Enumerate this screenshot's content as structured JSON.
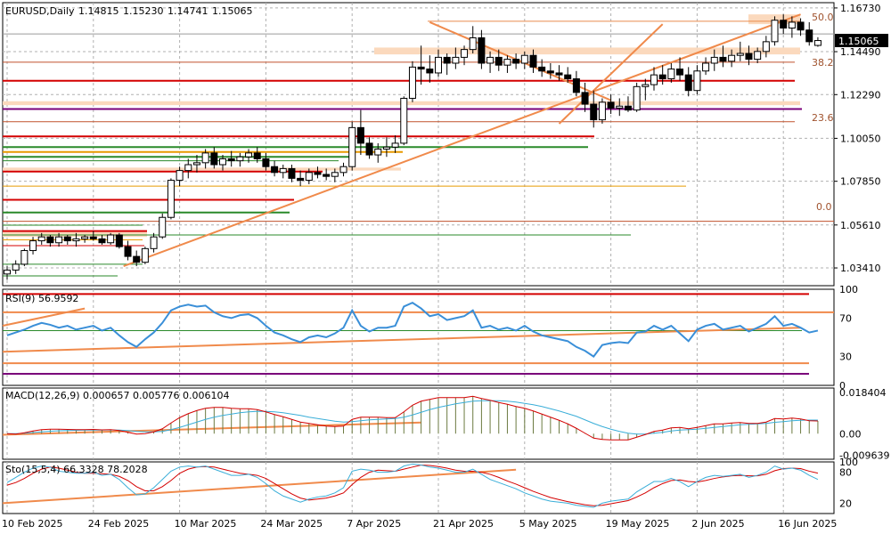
{
  "chart_data": [
    {
      "panel": "price",
      "type": "candlestick",
      "title": "EURUSD,Daily",
      "ohlc_readout": [
        "1.14815",
        "1.15230",
        "1.14741",
        "1.15065"
      ],
      "y_ticks": [
        "1.16730",
        "1.14490",
        "1.12290",
        "1.10050",
        "1.07850",
        "1.05610",
        "1.03410"
      ],
      "ylim": [
        1.025,
        1.17
      ],
      "current_price": "1.15065",
      "x_labels": [
        "10 Feb 2025",
        "24 Feb 2025",
        "10 Mar 2025",
        "24 Mar 2025",
        "7 Apr 2025",
        "21 Apr 2025",
        "5 May 2025",
        "19 May 2025",
        "2 Jun 2025",
        "16 Jun 2025"
      ],
      "fib_labels": [
        "50.0",
        "38.2",
        "23.6",
        "0.0"
      ],
      "candles": [
        [
          1.031,
          1.035,
          1.028,
          1.033
        ],
        [
          1.033,
          1.038,
          1.031,
          1.036
        ],
        [
          1.036,
          1.044,
          1.035,
          1.043
        ],
        [
          1.043,
          1.05,
          1.041,
          1.048
        ],
        [
          1.048,
          1.052,
          1.046,
          1.05
        ],
        [
          1.05,
          1.051,
          1.045,
          1.047
        ],
        [
          1.047,
          1.052,
          1.045,
          1.05
        ],
        [
          1.05,
          1.051,
          1.046,
          1.048
        ],
        [
          1.048,
          1.052,
          1.045,
          1.049
        ],
        [
          1.049,
          1.051,
          1.047,
          1.05
        ],
        [
          1.05,
          1.053,
          1.048,
          1.049
        ],
        [
          1.049,
          1.051,
          1.046,
          1.047
        ],
        [
          1.047,
          1.052,
          1.046,
          1.051
        ],
        [
          1.051,
          1.052,
          1.044,
          1.045
        ],
        [
          1.045,
          1.048,
          1.038,
          1.04
        ],
        [
          1.04,
          1.043,
          1.035,
          1.037
        ],
        [
          1.037,
          1.045,
          1.036,
          1.044
        ],
        [
          1.044,
          1.052,
          1.042,
          1.05
        ],
        [
          1.05,
          1.062,
          1.049,
          1.06
        ],
        [
          1.06,
          1.08,
          1.059,
          1.079
        ],
        [
          1.079,
          1.086,
          1.076,
          1.084
        ],
        [
          1.084,
          1.09,
          1.08,
          1.087
        ],
        [
          1.087,
          1.092,
          1.083,
          1.088
        ],
        [
          1.088,
          1.095,
          1.085,
          1.093
        ],
        [
          1.093,
          1.096,
          1.085,
          1.087
        ],
        [
          1.087,
          1.092,
          1.084,
          1.09
        ],
        [
          1.09,
          1.094,
          1.086,
          1.089
        ],
        [
          1.089,
          1.093,
          1.086,
          1.091
        ],
        [
          1.091,
          1.095,
          1.088,
          1.093
        ],
        [
          1.093,
          1.096,
          1.088,
          1.09
        ],
        [
          1.09,
          1.093,
          1.084,
          1.086
        ],
        [
          1.086,
          1.089,
          1.081,
          1.083
        ],
        [
          1.083,
          1.087,
          1.08,
          1.085
        ],
        [
          1.085,
          1.087,
          1.078,
          1.08
        ],
        [
          1.08,
          1.084,
          1.076,
          1.079
        ],
        [
          1.079,
          1.085,
          1.077,
          1.083
        ],
        [
          1.083,
          1.086,
          1.08,
          1.082
        ],
        [
          1.082,
          1.085,
          1.079,
          1.081
        ],
        [
          1.081,
          1.085,
          1.078,
          1.083
        ],
        [
          1.083,
          1.088,
          1.081,
          1.086
        ],
        [
          1.086,
          1.109,
          1.084,
          1.106
        ],
        [
          1.106,
          1.115,
          1.092,
          1.098
        ],
        [
          1.098,
          1.101,
          1.09,
          1.092
        ],
        [
          1.092,
          1.098,
          1.088,
          1.095
        ],
        [
          1.095,
          1.101,
          1.091,
          1.096
        ],
        [
          1.096,
          1.102,
          1.093,
          1.098
        ],
        [
          1.098,
          1.122,
          1.097,
          1.121
        ],
        [
          1.121,
          1.14,
          1.119,
          1.137
        ],
        [
          1.137,
          1.148,
          1.128,
          1.136
        ],
        [
          1.136,
          1.143,
          1.129,
          1.134
        ],
        [
          1.134,
          1.146,
          1.132,
          1.142
        ],
        [
          1.142,
          1.144,
          1.133,
          1.139
        ],
        [
          1.139,
          1.147,
          1.136,
          1.142
        ],
        [
          1.142,
          1.148,
          1.138,
          1.146
        ],
        [
          1.146,
          1.158,
          1.144,
          1.152
        ],
        [
          1.152,
          1.156,
          1.136,
          1.139
        ],
        [
          1.139,
          1.145,
          1.134,
          1.142
        ],
        [
          1.142,
          1.146,
          1.135,
          1.138
        ],
        [
          1.138,
          1.143,
          1.134,
          1.141
        ],
        [
          1.141,
          1.144,
          1.136,
          1.139
        ],
        [
          1.139,
          1.145,
          1.136,
          1.143
        ],
        [
          1.143,
          1.146,
          1.134,
          1.137
        ],
        [
          1.137,
          1.141,
          1.132,
          1.135
        ],
        [
          1.135,
          1.139,
          1.131,
          1.134
        ],
        [
          1.134,
          1.138,
          1.13,
          1.133
        ],
        [
          1.133,
          1.137,
          1.129,
          1.131
        ],
        [
          1.131,
          1.135,
          1.122,
          1.124
        ],
        [
          1.124,
          1.129,
          1.114,
          1.118
        ],
        [
          1.118,
          1.125,
          1.106,
          1.11
        ],
        [
          1.11,
          1.121,
          1.108,
          1.119
        ],
        [
          1.119,
          1.123,
          1.113,
          1.116
        ],
        [
          1.116,
          1.121,
          1.112,
          1.117
        ],
        [
          1.117,
          1.122,
          1.114,
          1.115
        ],
        [
          1.115,
          1.129,
          1.114,
          1.127
        ],
        [
          1.127,
          1.131,
          1.12,
          1.128
        ],
        [
          1.128,
          1.137,
          1.125,
          1.133
        ],
        [
          1.133,
          1.138,
          1.128,
          1.131
        ],
        [
          1.131,
          1.139,
          1.129,
          1.136
        ],
        [
          1.136,
          1.142,
          1.13,
          1.133
        ],
        [
          1.133,
          1.137,
          1.122,
          1.125
        ],
        [
          1.125,
          1.138,
          1.123,
          1.135
        ],
        [
          1.135,
          1.142,
          1.133,
          1.139
        ],
        [
          1.139,
          1.146,
          1.135,
          1.142
        ],
        [
          1.142,
          1.148,
          1.137,
          1.14
        ],
        [
          1.14,
          1.146,
          1.137,
          1.143
        ],
        [
          1.143,
          1.15,
          1.14,
          1.144
        ],
        [
          1.144,
          1.148,
          1.138,
          1.141
        ],
        [
          1.141,
          1.147,
          1.139,
          1.145
        ],
        [
          1.145,
          1.153,
          1.142,
          1.15
        ],
        [
          1.15,
          1.163,
          1.148,
          1.161
        ],
        [
          1.161,
          1.164,
          1.154,
          1.157
        ],
        [
          1.157,
          1.163,
          1.152,
          1.16
        ],
        [
          1.16,
          1.162,
          1.153,
          1.156
        ],
        [
          1.156,
          1.16,
          1.148,
          1.15
        ],
        [
          1.1481,
          1.1523,
          1.1474,
          1.1506
        ]
      ]
    },
    {
      "panel": "rsi",
      "type": "line",
      "title": "RSI(9) 56.9592",
      "y_ticks": [
        "100",
        "70",
        "30",
        "0"
      ],
      "ylim": [
        0,
        100
      ],
      "values": [
        52,
        55,
        58,
        62,
        65,
        63,
        60,
        62,
        58,
        60,
        62,
        57,
        60,
        52,
        45,
        40,
        48,
        55,
        65,
        78,
        82,
        84,
        82,
        83,
        76,
        72,
        70,
        73,
        74,
        70,
        62,
        55,
        52,
        48,
        45,
        50,
        52,
        50,
        54,
        60,
        78,
        62,
        56,
        60,
        60,
        62,
        82,
        86,
        80,
        72,
        74,
        68,
        70,
        72,
        78,
        60,
        62,
        58,
        60,
        57,
        62,
        56,
        52,
        50,
        48,
        46,
        40,
        36,
        30,
        42,
        44,
        45,
        44,
        55,
        56,
        62,
        58,
        62,
        54,
        46,
        58,
        62,
        64,
        58,
        60,
        62,
        56,
        60,
        64,
        72,
        62,
        64,
        60,
        55,
        57
      ]
    },
    {
      "panel": "macd",
      "type": "line",
      "title": "MACD(12,26,9) 0.000657 0.005776 0.006104",
      "y_ticks": [
        "0.018404",
        "0.00",
        "-0.009639"
      ],
      "ylim": [
        -0.0115,
        0.0205
      ],
      "macd": [
        0,
        -0.0002,
        0.0004,
        0.0012,
        0.0018,
        0.002,
        0.002,
        0.0019,
        0.0018,
        0.0018,
        0.0019,
        0.0017,
        0.0018,
        0.0014,
        0.0006,
        -0.0002,
        0,
        0.0008,
        0.0022,
        0.0048,
        0.0072,
        0.009,
        0.0104,
        0.0114,
        0.0118,
        0.0118,
        0.0114,
        0.0112,
        0.0112,
        0.0108,
        0.0098,
        0.0086,
        0.0076,
        0.0064,
        0.0052,
        0.0046,
        0.004,
        0.0034,
        0.0032,
        0.0034,
        0.0064,
        0.0074,
        0.0074,
        0.0074,
        0.0072,
        0.0072,
        0.0098,
        0.0128,
        0.0146,
        0.0154,
        0.0162,
        0.0162,
        0.0162,
        0.0162,
        0.0168,
        0.0158,
        0.015,
        0.014,
        0.0132,
        0.0122,
        0.0114,
        0.0102,
        0.0088,
        0.0074,
        0.006,
        0.0044,
        0.0024,
        0.0002,
        -0.002,
        -0.0026,
        -0.0028,
        -0.0028,
        -0.0028,
        -0.0016,
        -0.0004,
        0.001,
        0.0016,
        0.0026,
        0.0028,
        0.0022,
        0.0028,
        0.0036,
        0.0044,
        0.0044,
        0.0048,
        0.005,
        0.0046,
        0.0046,
        0.0052,
        0.0068,
        0.0066,
        0.007,
        0.0066,
        0.0058,
        0.0057
      ],
      "signal": [
        0,
        0,
        0.0002,
        0.0005,
        0.0008,
        0.0011,
        0.0013,
        0.0014,
        0.0015,
        0.0016,
        0.0016,
        0.0016,
        0.0017,
        0.0016,
        0.0014,
        0.001,
        0.0008,
        0.0008,
        0.001,
        0.0018,
        0.0028,
        0.004,
        0.0052,
        0.0064,
        0.0074,
        0.0082,
        0.0088,
        0.0094,
        0.0098,
        0.01,
        0.01,
        0.0098,
        0.0094,
        0.0088,
        0.0082,
        0.0074,
        0.0068,
        0.0062,
        0.0056,
        0.0052,
        0.0054,
        0.0058,
        0.0062,
        0.0064,
        0.0066,
        0.0068,
        0.0074,
        0.0084,
        0.0096,
        0.0108,
        0.0118,
        0.0126,
        0.0134,
        0.014,
        0.0146,
        0.0148,
        0.0148,
        0.0148,
        0.0146,
        0.0142,
        0.0136,
        0.013,
        0.0122,
        0.0112,
        0.0102,
        0.009,
        0.0078,
        0.0062,
        0.0046,
        0.0032,
        0.002,
        0.001,
        0.0002,
        -0.0002,
        -0.0002,
        0.0002,
        0.0006,
        0.0012,
        0.0016,
        0.0018,
        0.002,
        0.0024,
        0.0028,
        0.0032,
        0.0036,
        0.004,
        0.0042,
        0.0044,
        0.0046,
        0.0051,
        0.0054,
        0.0058,
        0.006,
        0.0061,
        0.0061
      ]
    },
    {
      "panel": "stochastic",
      "type": "line",
      "title": "Sto(15,5,4) 66.3328 78.2028",
      "y_ticks": [
        "100",
        "80",
        "20"
      ],
      "ylim": [
        0,
        100
      ],
      "k": [
        60,
        70,
        80,
        88,
        92,
        90,
        82,
        80,
        78,
        78,
        80,
        74,
        76,
        66,
        50,
        36,
        38,
        50,
        66,
        82,
        90,
        92,
        90,
        92,
        86,
        80,
        74,
        74,
        76,
        70,
        58,
        44,
        34,
        28,
        22,
        28,
        32,
        34,
        40,
        50,
        82,
        86,
        84,
        80,
        80,
        82,
        92,
        96,
        94,
        90,
        88,
        84,
        80,
        80,
        86,
        76,
        66,
        60,
        54,
        48,
        40,
        34,
        28,
        24,
        22,
        20,
        16,
        14,
        12,
        20,
        24,
        26,
        28,
        42,
        52,
        62,
        62,
        68,
        62,
        52,
        62,
        70,
        74,
        72,
        74,
        76,
        70,
        74,
        80,
        92,
        86,
        88,
        84,
        74,
        66
      ],
      "d": [
        55,
        60,
        68,
        78,
        86,
        90,
        88,
        84,
        80,
        78,
        78,
        77,
        76,
        72,
        64,
        52,
        44,
        44,
        52,
        64,
        78,
        86,
        90,
        91,
        90,
        86,
        82,
        78,
        76,
        74,
        68,
        58,
        48,
        38,
        30,
        26,
        28,
        30,
        34,
        40,
        56,
        70,
        80,
        84,
        83,
        82,
        86,
        90,
        94,
        93,
        91,
        88,
        84,
        82,
        82,
        80,
        76,
        70,
        63,
        57,
        50,
        43,
        37,
        31,
        27,
        23,
        20,
        17,
        15,
        16,
        19,
        22,
        25,
        32,
        40,
        50,
        58,
        64,
        65,
        62,
        61,
        64,
        68,
        71,
        73,
        74,
        73,
        73,
        76,
        83,
        87,
        88,
        87,
        82,
        78.2
      ]
    }
  ]
}
